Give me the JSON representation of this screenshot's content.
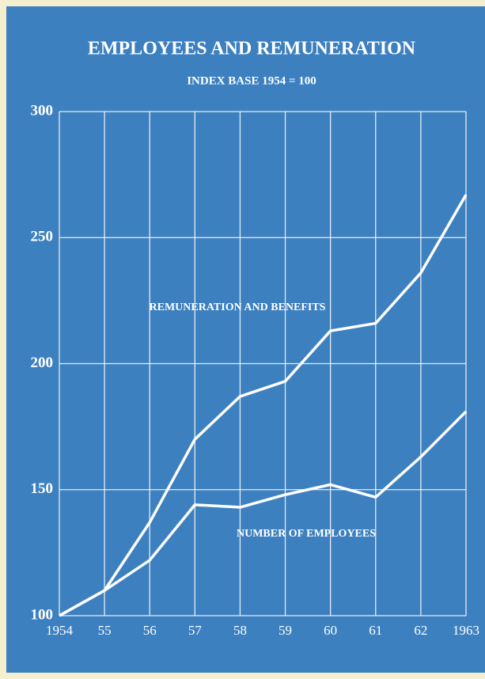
{
  "chart_data": {
    "type": "line",
    "title": "EMPLOYEES AND REMUNERATION",
    "subtitle": "INDEX BASE 1954 = 100",
    "categories": [
      "1954",
      "55",
      "56",
      "57",
      "58",
      "59",
      "60",
      "61",
      "62",
      "1963"
    ],
    "series": [
      {
        "name": "REMUNERATION AND BENEFITS",
        "color": "#ffffff",
        "values": [
          100,
          110,
          137,
          170,
          187,
          193,
          213,
          216,
          236,
          267
        ]
      },
      {
        "name": "NUMBER OF EMPLOYEES",
        "color": "#ffffff",
        "values": [
          100,
          110,
          122,
          144,
          143,
          148,
          152,
          147,
          163,
          181
        ]
      }
    ],
    "ylim": [
      100,
      300
    ],
    "yticks": [
      100,
      150,
      200,
      250,
      300
    ],
    "grid": true
  }
}
